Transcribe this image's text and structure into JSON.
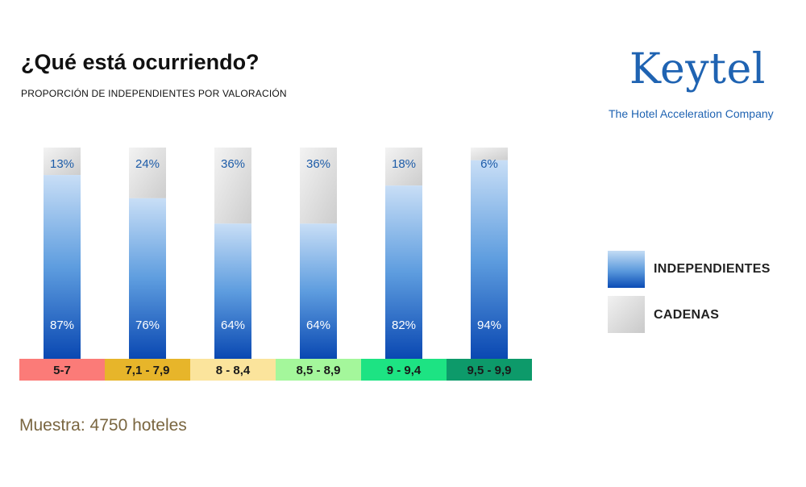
{
  "header": {
    "title": "¿Qué está ocurriendo?",
    "subtitle": "PROPORCIÓN DE INDEPENDIENTES POR VALORACIÓN"
  },
  "logo": {
    "word": "Keytel",
    "tagline": "The Hotel Acceleration Company"
  },
  "legend": {
    "items": [
      {
        "label": "INDEPENDIENTES",
        "color": "#0a4bb5"
      },
      {
        "label": "CADENAS",
        "color": "#cccccc"
      }
    ]
  },
  "footer": {
    "sample": "Muestra: 4750 hoteles"
  },
  "chart_data": {
    "type": "bar",
    "stacked": true,
    "categories": [
      "5-7",
      "7,1 - 7,9",
      "8 - 8,4",
      "8,5 - 8,9",
      "9 - 9,4",
      "9,5 - 9,9"
    ],
    "category_colors": [
      "#fb7b78",
      "#e7b52a",
      "#fbe49c",
      "#a4f79b",
      "#1de383",
      "#0d9a6a"
    ],
    "series": [
      {
        "name": "INDEPENDIENTES",
        "values": [
          87,
          76,
          64,
          64,
          82,
          94
        ],
        "labels": [
          "87%",
          "76%",
          "64%",
          "64%",
          "82%",
          "94%"
        ]
      },
      {
        "name": "CADENAS",
        "values": [
          13,
          24,
          36,
          36,
          18,
          6
        ],
        "labels": [
          "13%",
          "24%",
          "36%",
          "36%",
          "18%",
          "6%"
        ]
      }
    ],
    "ylim": [
      0,
      100
    ],
    "legend_position": "right"
  }
}
